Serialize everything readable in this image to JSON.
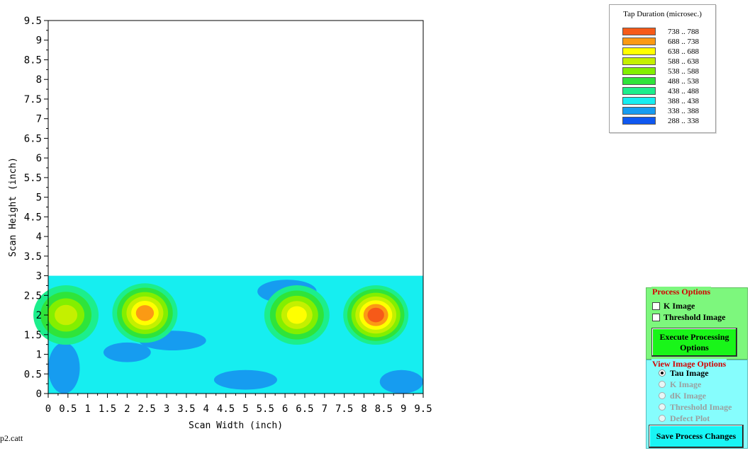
{
  "chart_data": {
    "type": "heatmap",
    "title": "",
    "xlabel": "Scan Width (inch)",
    "ylabel": "Scan Height (inch)",
    "xlim": [
      0,
      9.5
    ],
    "ylim": [
      0,
      9.5
    ],
    "x_ticks": [
      "0",
      "0.5",
      "1",
      "1.5",
      "2",
      "2.5",
      "3",
      "3.5",
      "4",
      "4.5",
      "5",
      "5.5",
      "6",
      "6.5",
      "7",
      "7.5",
      "8",
      "8.5",
      "9",
      "9.5"
    ],
    "y_ticks": [
      "0",
      "0.5",
      "1",
      "1.5",
      "2",
      "2.5",
      "3",
      "3.5",
      "4",
      "4.5",
      "5",
      "5.5",
      "6",
      "6.5",
      "7",
      "7.5",
      "8",
      "8.5",
      "9",
      "9.5"
    ],
    "scanned_region": {
      "x": [
        0,
        9.5
      ],
      "y": [
        0,
        3
      ]
    },
    "background_level_range": "388 .. 438",
    "low_patches": [
      {
        "x": [
          0,
          0.8
        ],
        "y": [
          0,
          1.3
        ]
      },
      {
        "x": [
          8.4,
          9.5
        ],
        "y": [
          0,
          0.6
        ]
      },
      {
        "x": [
          1.4,
          2.6
        ],
        "y": [
          0.8,
          1.3
        ]
      },
      {
        "x": [
          4.2,
          5.8
        ],
        "y": [
          0.1,
          0.6
        ]
      },
      {
        "x": [
          2.3,
          4.0
        ],
        "y": [
          1.1,
          1.6
        ]
      },
      {
        "x": [
          5.3,
          6.8
        ],
        "y": [
          2.3,
          2.9
        ]
      }
    ],
    "hotspots": [
      {
        "x": 0.45,
        "y": 2.0,
        "peak": "588 .. 638"
      },
      {
        "x": 2.45,
        "y": 2.05,
        "peak": "688 .. 738"
      },
      {
        "x": 6.3,
        "y": 2.0,
        "peak": "638 .. 688"
      },
      {
        "x": 8.3,
        "y": 2.0,
        "peak": "738 .. 788"
      }
    ]
  },
  "legend": {
    "title": "Tap Duration (microsec.)",
    "entries": [
      {
        "label": "738 .. 788",
        "color": "#f65a18"
      },
      {
        "label": "688 .. 738",
        "color": "#fb9a14"
      },
      {
        "label": "638 .. 688",
        "color": "#ffff00"
      },
      {
        "label": "588 .. 638",
        "color": "#c4f000"
      },
      {
        "label": "538 .. 588",
        "color": "#83ef00"
      },
      {
        "label": "488 .. 538",
        "color": "#2fe43a"
      },
      {
        "label": "438 .. 488",
        "color": "#1cee8c"
      },
      {
        "label": "388 .. 438",
        "color": "#16eef0"
      },
      {
        "label": "338 .. 388",
        "color": "#169cf0"
      },
      {
        "label": "288 .. 338",
        "color": "#0f58f0"
      }
    ]
  },
  "filename": "p2.catt",
  "process_options": {
    "title": "Process Options",
    "k_image": "K Image",
    "threshold_image": "Threshold Image",
    "execute_button": "Execute Processing Options"
  },
  "view_image_options": {
    "title": "View Image Options",
    "options": [
      "Tau Image",
      "K Image",
      "dK Image",
      "Threshold Image",
      "Defect Plot"
    ],
    "selected": "Tau Image",
    "save_button": "Save Process Changes"
  }
}
